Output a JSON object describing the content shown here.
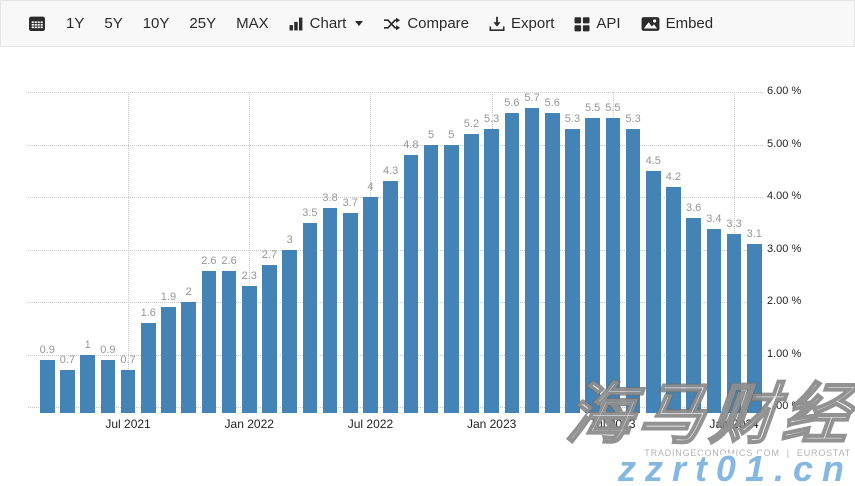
{
  "toolbar": {
    "ranges": [
      "1Y",
      "5Y",
      "10Y",
      "25Y",
      "MAX"
    ],
    "chart_label": "Chart",
    "compare_label": "Compare",
    "export_label": "Export",
    "api_label": "API",
    "embed_label": "Embed"
  },
  "chart_data": {
    "type": "bar",
    "title": "",
    "xlabel": "",
    "ylabel": "",
    "unit": "%",
    "grid": "dotted",
    "legend": "none",
    "series_color": "#4483b5",
    "values": [
      0.9,
      0.7,
      1,
      0.9,
      0.7,
      1.6,
      1.9,
      2,
      2.6,
      2.6,
      2.3,
      2.7,
      3,
      3.5,
      3.8,
      3.7,
      4,
      4.3,
      4.8,
      5,
      5,
      5.2,
      5.3,
      5.6,
      5.7,
      5.6,
      5.3,
      5.5,
      5.5,
      5.3,
      4.5,
      4.2,
      3.6,
      3.4,
      3.3,
      3.1
    ],
    "x_ticks": [
      {
        "label": "Jul 2021",
        "bar_index": 4
      },
      {
        "label": "Jan 2022",
        "bar_index": 10
      },
      {
        "label": "Jul 2022",
        "bar_index": 16
      },
      {
        "label": "Jan 2023",
        "bar_index": 22
      },
      {
        "label": "Jul 2023",
        "bar_index": 28
      },
      {
        "label": "Jan 2024",
        "bar_index": 34
      }
    ],
    "y_ticks": [
      {
        "label": "6.00 %",
        "value": 6
      },
      {
        "label": "5.00 %",
        "value": 5
      },
      {
        "label": "4.00 %",
        "value": 4
      },
      {
        "label": "3.00 %",
        "value": 3
      },
      {
        "label": "2.00 %",
        "value": 2
      },
      {
        "label": "1.00 %",
        "value": 1
      },
      {
        "label": "0.00 %",
        "value": 0
      }
    ],
    "ylim": [
      -0.11,
      6.6
    ]
  },
  "attribution": {
    "source": "TRADINGECONOMICS.COM",
    "separator": "|",
    "provider": "EUROSTAT"
  },
  "watermark": {
    "line1": "海马财经",
    "line2": "zzrt01.cn",
    "url_color": "#85b8e0"
  },
  "colors": {
    "bar": "#4483b5",
    "bar_label": "#979797",
    "axis_text": "#1f1f1f",
    "gridline": "#c9c9c9",
    "toolbar_bg": "#f8f8f8",
    "toolbar_border": "#e6e6e6",
    "toolbar_text": "#2b2b2b"
  }
}
